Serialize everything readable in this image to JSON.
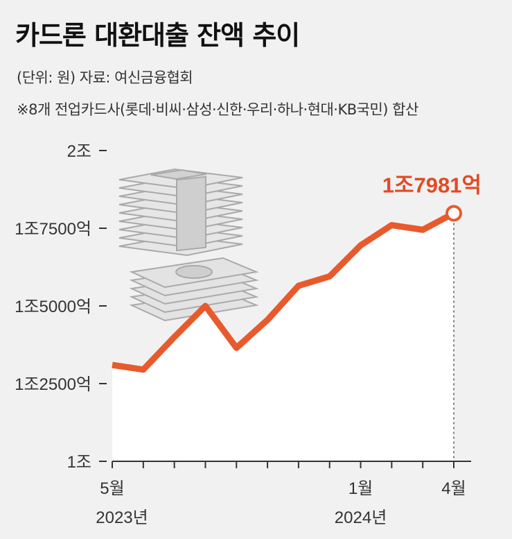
{
  "header": {
    "title": "카드론 대환대출 잔액 추이",
    "unit_source": "(단위: 원) 자료: 여신금융협회",
    "note": "※8개 전업카드사(롯데·비씨·삼성·신한·우리·하나·현대·KB국민) 합산"
  },
  "chart_data": {
    "type": "area",
    "title": "카드론 대환대출 잔액 추이",
    "y_unit": "억원",
    "ylim": [
      10000,
      20000
    ],
    "y_ticks": [
      {
        "value": 10000,
        "label": "1조"
      },
      {
        "value": 12500,
        "label": "1조2500억"
      },
      {
        "value": 15000,
        "label": "1조5000억"
      },
      {
        "value": 17500,
        "label": "1조7500억"
      },
      {
        "value": 20000,
        "label": "2조"
      }
    ],
    "x": [
      "2023-05",
      "2023-06",
      "2023-07",
      "2023-08",
      "2023-09",
      "2023-10",
      "2023-11",
      "2023-12",
      "2024-01",
      "2024-02",
      "2024-03",
      "2024-04"
    ],
    "x_tick_labels": [
      {
        "index": 0,
        "month": "5월",
        "year": "2023년"
      },
      {
        "index": 8,
        "month": "1월",
        "year": "2024년"
      },
      {
        "index": 11,
        "month": "4월",
        "year": ""
      }
    ],
    "series": [
      {
        "values": [
          13100,
          12950,
          14000,
          15000,
          13650,
          14550,
          15650,
          15950,
          16950,
          17600,
          17450,
          17981
        ],
        "color": "#e85a2c",
        "fill": "#ffffff"
      }
    ],
    "annotation": {
      "index": 11,
      "label": "1조7981억",
      "color": "#e24a24"
    },
    "grid": false
  }
}
